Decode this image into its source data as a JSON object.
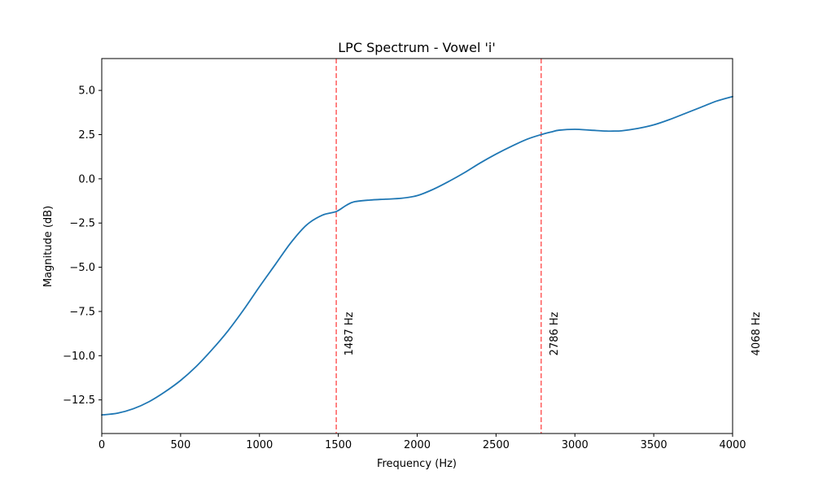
{
  "chart_data": {
    "type": "line",
    "title": "LPC Spectrum - Vowel 'i'",
    "xlabel": "Frequency (Hz)",
    "ylabel": "Magnitude (dB)",
    "xlim": [
      0,
      4000
    ],
    "ylim": [
      -14.4,
      6.8
    ],
    "x_ticks": [
      0,
      500,
      1000,
      1500,
      2000,
      2500,
      3000,
      3500,
      4000
    ],
    "x_tick_labels": [
      "0",
      "500",
      "1000",
      "1500",
      "2000",
      "2500",
      "3000",
      "3500",
      "4000"
    ],
    "y_ticks": [
      5.0,
      2.5,
      0.0,
      -2.5,
      -5.0,
      -7.5,
      -10.0,
      -12.5
    ],
    "y_tick_labels": [
      "5.0",
      "2.5",
      "0.0",
      "−2.5",
      "−5.0",
      "−7.5",
      "−10.0",
      "−12.5"
    ],
    "grid": false,
    "series": [
      {
        "color": "#1f77b4",
        "x": [
          0,
          100,
          200,
          300,
          400,
          500,
          600,
          700,
          800,
          900,
          1000,
          1100,
          1200,
          1300,
          1400,
          1487,
          1550,
          1600,
          1700,
          1800,
          1900,
          2000,
          2100,
          2200,
          2300,
          2400,
          2500,
          2600,
          2700,
          2786,
          2850,
          2900,
          3000,
          3100,
          3200,
          3250,
          3300,
          3400,
          3500,
          3600,
          3700,
          3800,
          3900,
          4000
        ],
        "y": [
          -13.35,
          -13.25,
          -13.0,
          -12.6,
          -12.05,
          -11.4,
          -10.6,
          -9.65,
          -8.6,
          -7.4,
          -6.1,
          -4.85,
          -3.6,
          -2.6,
          -2.05,
          -1.85,
          -1.5,
          -1.3,
          -1.2,
          -1.15,
          -1.1,
          -0.95,
          -0.6,
          -0.15,
          0.35,
          0.9,
          1.4,
          1.85,
          2.25,
          2.5,
          2.65,
          2.75,
          2.8,
          2.75,
          2.7,
          2.7,
          2.72,
          2.85,
          3.05,
          3.35,
          3.7,
          4.05,
          4.4,
          4.65
        ]
      }
    ],
    "formants": [
      {
        "freq": 1487,
        "label": "1487 Hz"
      },
      {
        "freq": 2786,
        "label": "2786 Hz"
      },
      {
        "freq": 4068,
        "label": "4068 Hz"
      }
    ],
    "formant_line_color": "#ff6666",
    "axis_color": "#000000"
  }
}
